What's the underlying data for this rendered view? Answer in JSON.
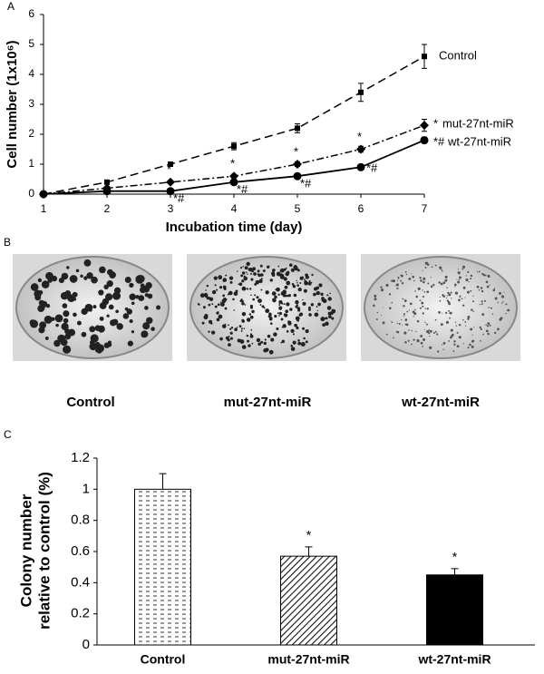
{
  "panels": [
    "A",
    "B",
    "C"
  ],
  "dish_labels": [
    "Control",
    "mut-27nt-miR",
    "wt-27nt-miR"
  ],
  "chart_data": [
    {
      "type": "line",
      "x_label": "Incubation time (day)",
      "y_label": "Cell number (1x10⁶)",
      "x": [
        1,
        2,
        3,
        4,
        5,
        6,
        7
      ],
      "xlim": [
        1,
        7
      ],
      "xticks": [
        1,
        2,
        3,
        4,
        5,
        6,
        7
      ],
      "ylim": [
        0,
        6
      ],
      "yticks": [
        0,
        1,
        2,
        3,
        4,
        5,
        6
      ],
      "grid": false,
      "series": [
        {
          "name": "Control",
          "color": "#000000",
          "line_style": "dashed",
          "marker": "square",
          "values": [
            0,
            0.4,
            1.0,
            1.6,
            2.2,
            3.4,
            4.6
          ],
          "errors": [
            0,
            0.06,
            0.07,
            0.12,
            0.15,
            0.3,
            0.4
          ],
          "point_labels": [
            null,
            null,
            null,
            null,
            null,
            null,
            null
          ]
        },
        {
          "name": "mut-27nt-miR",
          "color": "#000000",
          "line_style": "dashdot",
          "marker": "diamond",
          "values": [
            0,
            0.2,
            0.4,
            0.6,
            1.0,
            1.5,
            2.3
          ],
          "errors": [
            0,
            0.03,
            0.05,
            0.06,
            0.08,
            0.1,
            0.2
          ],
          "point_labels": [
            null,
            null,
            "*",
            "*",
            "*",
            "*",
            "*"
          ]
        },
        {
          "name": "wt-27nt-miR",
          "color": "#000000",
          "line_style": "solid",
          "marker": "circle",
          "values": [
            0,
            0.1,
            0.1,
            0.4,
            0.6,
            0.9,
            1.8
          ],
          "errors": [
            0,
            0.02,
            0.03,
            0.05,
            0.05,
            0.06,
            0.1
          ],
          "point_labels": [
            null,
            null,
            "*#",
            "*#",
            "*#",
            "*#",
            "*#"
          ]
        }
      ]
    },
    {
      "type": "bar",
      "y_label": [
        "Colony number",
        "relative to control (%)"
      ],
      "categories": [
        "Control",
        "mut-27nt-miR",
        "wt-27nt-miR"
      ],
      "values": [
        1.0,
        0.57,
        0.45
      ],
      "errors": [
        0.1,
        0.06,
        0.04
      ],
      "patterns": [
        "dashes",
        "hatch",
        "solid"
      ],
      "point_labels": [
        null,
        "*",
        "*"
      ],
      "ylim": [
        0,
        1.2
      ],
      "yticks": [
        0,
        0.2,
        0.4,
        0.6,
        0.8,
        1,
        1.2
      ]
    }
  ]
}
